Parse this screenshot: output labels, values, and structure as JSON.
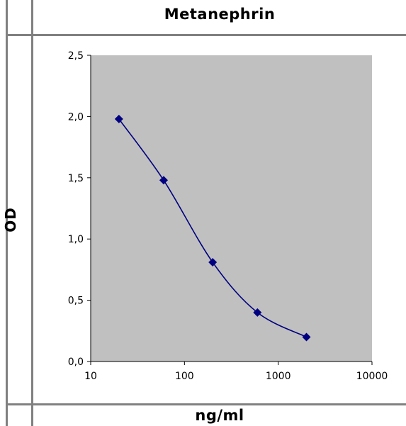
{
  "chart_data": {
    "type": "line",
    "title": "Metanephrin",
    "ylabel": "OD",
    "xlabel": "ng/ml",
    "x_scale": "log",
    "xlim": [
      10,
      10000
    ],
    "ylim": [
      0.0,
      2.5
    ],
    "x_ticks": [
      "10",
      "100",
      "1000",
      "10000"
    ],
    "y_ticks": [
      "0,0",
      "0,5",
      "1,0",
      "1,5",
      "2,0",
      "2,5"
    ],
    "grid": false,
    "plot_background": "#c0c0c0",
    "series": [
      {
        "color": "#000080",
        "marker": "diamond",
        "smooth": true,
        "points": [
          {
            "x": 20,
            "y": 1.98
          },
          {
            "x": 60,
            "y": 1.48
          },
          {
            "x": 200,
            "y": 0.81
          },
          {
            "x": 600,
            "y": 0.4
          },
          {
            "x": 2000,
            "y": 0.2
          }
        ]
      }
    ]
  }
}
